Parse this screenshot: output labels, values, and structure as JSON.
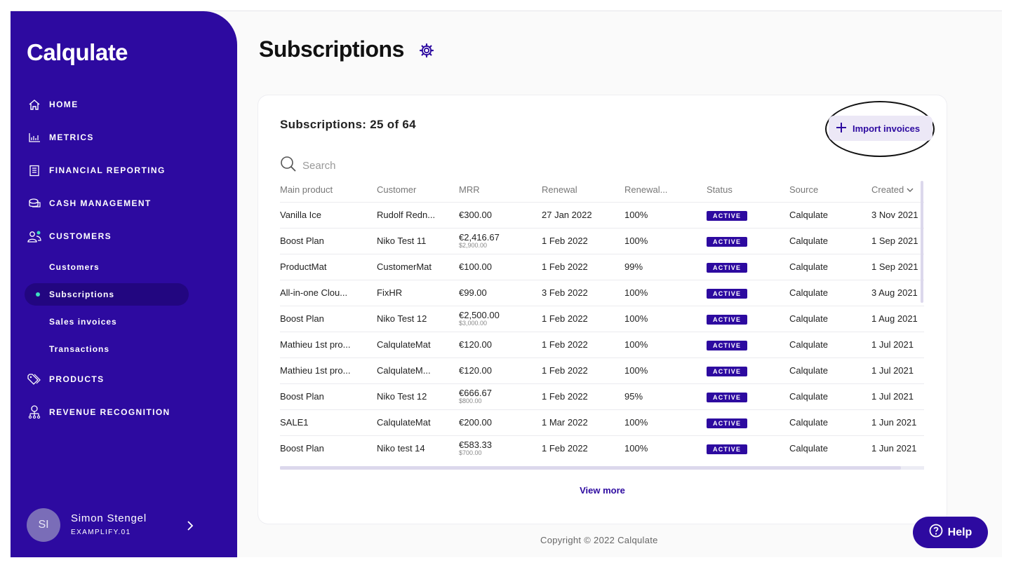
{
  "app": {
    "logo": "Calqulate"
  },
  "sidebar": {
    "items": [
      {
        "label": "HOME",
        "icon": "home-icon"
      },
      {
        "label": "METRICS",
        "icon": "bar-chart-icon"
      },
      {
        "label": "FINANCIAL REPORTING",
        "icon": "report-icon"
      },
      {
        "label": "CASH MANAGEMENT",
        "icon": "cash-icon"
      },
      {
        "label": "CUSTOMERS",
        "icon": "users-icon"
      },
      {
        "label": "PRODUCTS",
        "icon": "tag-icon"
      },
      {
        "label": "REVENUE RECOGNITION",
        "icon": "revenue-icon"
      }
    ],
    "subitems": [
      {
        "label": "Customers"
      },
      {
        "label": "Subscriptions",
        "active": true
      },
      {
        "label": "Sales invoices"
      },
      {
        "label": "Transactions"
      }
    ],
    "user": {
      "initials": "SI",
      "name": "Simon Stengel",
      "org": "EXAMPLIFY.01"
    }
  },
  "page": {
    "title": "Subscriptions"
  },
  "card": {
    "count": "Subscriptions: 25 of 64",
    "import_label": "Import invoices",
    "search_placeholder": "Search",
    "columns": [
      "Main product",
      "Customer",
      "MRR",
      "Renewal",
      "Renewal...",
      "Status",
      "Source",
      "Created"
    ],
    "rows": [
      {
        "product": "Vanilla Ice",
        "customer": "Rudolf Redn...",
        "mrr": "€300.00",
        "mrr_sub": "",
        "renewal": "27 Jan 2022",
        "renewal_pct": "100%",
        "status": "ACTIVE",
        "source": "Calqulate",
        "created": "3 Nov 2021"
      },
      {
        "product": "Boost Plan",
        "customer": "Niko Test 11",
        "mrr": "€2,416.67",
        "mrr_sub": "$2,900.00",
        "renewal": "1 Feb 2022",
        "renewal_pct": "100%",
        "status": "ACTIVE",
        "source": "Calqulate",
        "created": "1 Sep 2021"
      },
      {
        "product": "ProductMat",
        "customer": "CustomerMat",
        "mrr": "€100.00",
        "mrr_sub": "",
        "renewal": "1 Feb 2022",
        "renewal_pct": "99%",
        "status": "ACTIVE",
        "source": "Calqulate",
        "created": "1 Sep 2021"
      },
      {
        "product": "All-in-one Clou...",
        "customer": "FixHR",
        "mrr": "€99.00",
        "mrr_sub": "",
        "renewal": "3 Feb 2022",
        "renewal_pct": "100%",
        "status": "ACTIVE",
        "source": "Calqulate",
        "created": "3 Aug 2021"
      },
      {
        "product": "Boost Plan",
        "customer": "Niko Test 12",
        "mrr": "€2,500.00",
        "mrr_sub": "$3,000.00",
        "renewal": "1 Feb 2022",
        "renewal_pct": "100%",
        "status": "ACTIVE",
        "source": "Calqulate",
        "created": "1 Aug 2021"
      },
      {
        "product": "Mathieu 1st pro...",
        "customer": "CalqulateMat",
        "mrr": "€120.00",
        "mrr_sub": "",
        "renewal": "1 Feb 2022",
        "renewal_pct": "100%",
        "status": "ACTIVE",
        "source": "Calqulate",
        "created": "1 Jul 2021"
      },
      {
        "product": "Mathieu 1st pro...",
        "customer": "CalqulateM...",
        "mrr": "€120.00",
        "mrr_sub": "",
        "renewal": "1 Feb 2022",
        "renewal_pct": "100%",
        "status": "ACTIVE",
        "source": "Calqulate",
        "created": "1 Jul 2021"
      },
      {
        "product": "Boost Plan",
        "customer": "Niko Test 12",
        "mrr": "€666.67",
        "mrr_sub": "$800.00",
        "renewal": "1 Feb 2022",
        "renewal_pct": "95%",
        "status": "ACTIVE",
        "source": "Calqulate",
        "created": "1 Jul 2021"
      },
      {
        "product": "SALE1",
        "customer": "CalqulateMat",
        "mrr": "€200.00",
        "mrr_sub": "",
        "renewal": "1 Mar 2022",
        "renewal_pct": "100%",
        "status": "ACTIVE",
        "source": "Calqulate",
        "created": "1 Jun 2021"
      },
      {
        "product": "Boost Plan",
        "customer": "Niko test 14",
        "mrr": "€583.33",
        "mrr_sub": "$700.00",
        "renewal": "1 Feb 2022",
        "renewal_pct": "100%",
        "status": "ACTIVE",
        "source": "Calqulate",
        "created": "1 Jun 2021"
      }
    ],
    "view_more": "View more"
  },
  "footer": {
    "copyright": "Copyright © 2022 Calqulate"
  },
  "help": {
    "label": "Help"
  },
  "colors": {
    "brand": "#2d0aa0",
    "active_dot": "#3de0c0"
  }
}
